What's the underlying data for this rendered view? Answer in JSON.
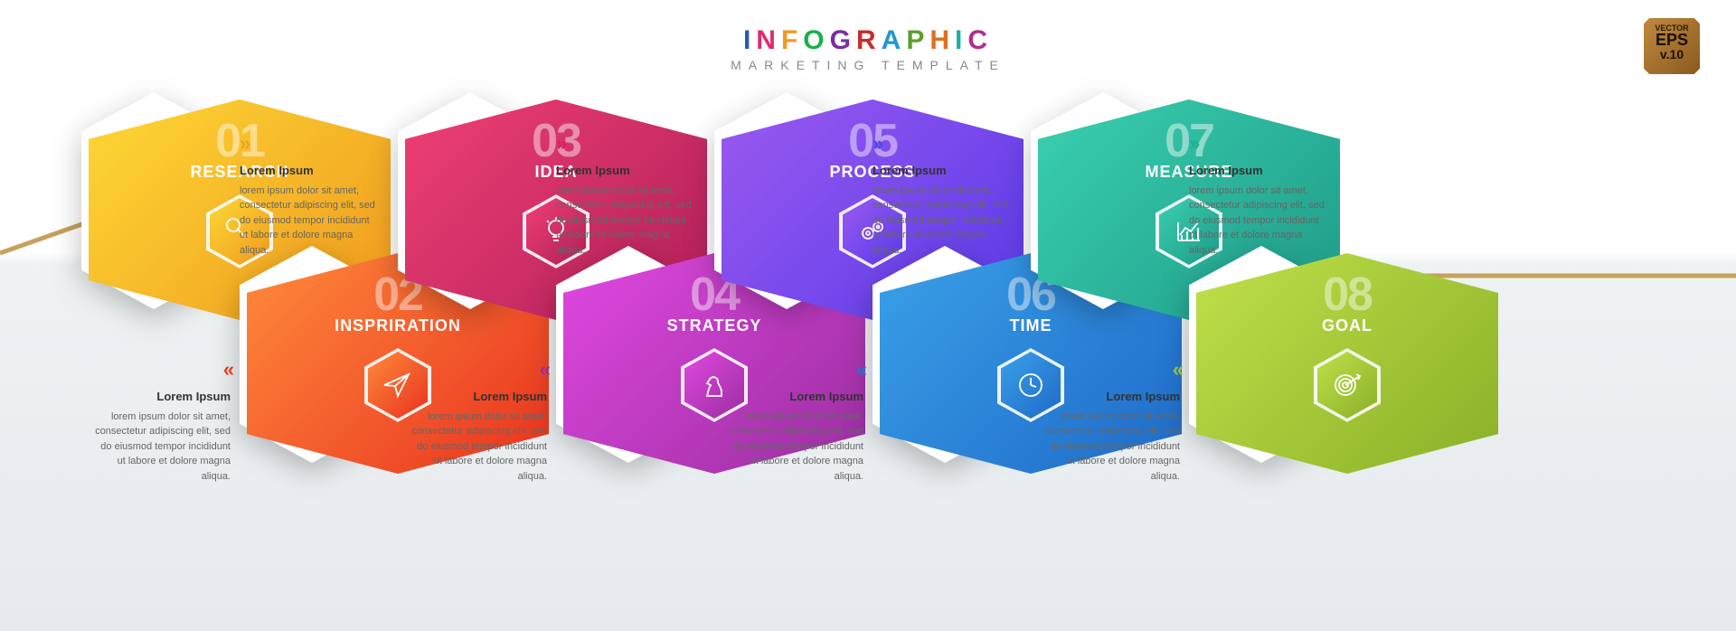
{
  "title_main": "INFOGRAPHIC",
  "title_sub": "MARKETING  TEMPLATE",
  "badge": {
    "top": "VECTOR",
    "eps": "EPS",
    "v": "v.10"
  },
  "zigzag_stroke": "#c6a15b",
  "desc_title": "Lorem Ipsum",
  "desc_body": "lorem ipsum dolor sit amet, consectetur adipiscing elit, sed do eiusmod tempor incididunt ut labore et dolore magna aliqua.",
  "steps": [
    {
      "num": "01",
      "label": "RESEARCH",
      "icon": "search",
      "pos": "upper",
      "chev_color": "#f0a21e",
      "grad": [
        "#fdd835",
        "#f09a1e"
      ]
    },
    {
      "num": "02",
      "label": "INSPRIRATION",
      "icon": "paperplane",
      "pos": "lower",
      "chev_color": "#e83e1e",
      "grad": [
        "#ff8a3c",
        "#e8321e"
      ]
    },
    {
      "num": "03",
      "label": "IDEA",
      "icon": "bulb",
      "pos": "upper",
      "chev_color": "#d1236b",
      "grad": [
        "#ef4074",
        "#b11f5a"
      ]
    },
    {
      "num": "04",
      "label": "STRATEGY",
      "icon": "knight",
      "pos": "lower",
      "chev_color": "#9a2ea0",
      "grad": [
        "#e048e0",
        "#9a2ea0"
      ]
    },
    {
      "num": "05",
      "label": "PROCESS",
      "icon": "gears",
      "pos": "upper",
      "chev_color": "#4a4ae8",
      "grad": [
        "#9a5af0",
        "#5a3ae8"
      ]
    },
    {
      "num": "06",
      "label": "TIME",
      "icon": "clock",
      "pos": "lower",
      "chev_color": "#1e78c8",
      "grad": [
        "#3aa0e8",
        "#1e6ac8"
      ]
    },
    {
      "num": "07",
      "label": "MEASURE",
      "icon": "chart",
      "pos": "upper",
      "chev_color": "#1eb08a",
      "grad": [
        "#3ad0b0",
        "#1e9a88"
      ]
    },
    {
      "num": "08",
      "label": "GOAL",
      "icon": "target",
      "pos": "lower",
      "chev_color": "#9ac03e",
      "grad": [
        "#c0e04a",
        "#8ab028"
      ]
    }
  ]
}
